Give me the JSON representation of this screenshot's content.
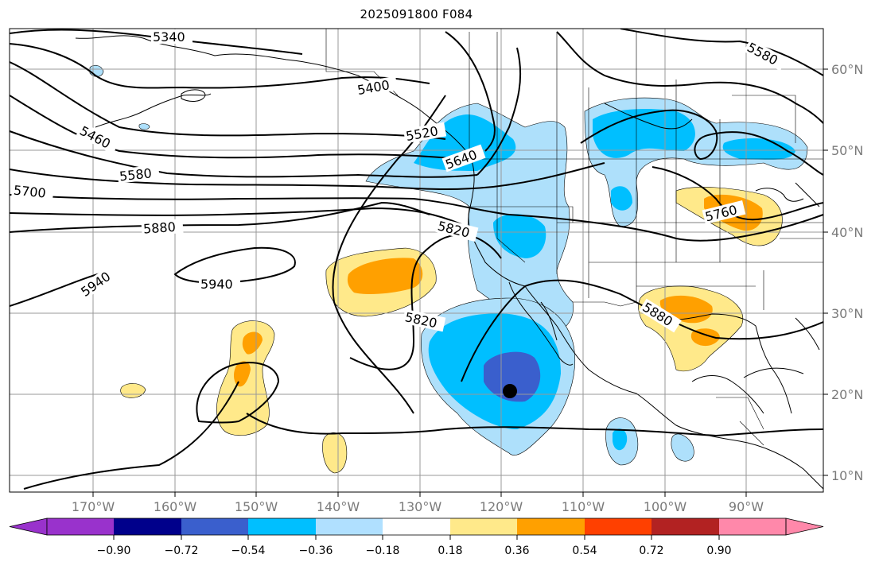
{
  "title": "2025091800 F084",
  "map": {
    "lon_labels": [
      {
        "text": "170°W",
        "lon": -170
      },
      {
        "text": "160°W",
        "lon": -160
      },
      {
        "text": "150°W",
        "lon": -150
      },
      {
        "text": "140°W",
        "lon": -140
      },
      {
        "text": "130°W",
        "lon": -130
      },
      {
        "text": "120°W",
        "lon": -120
      },
      {
        "text": "110°W",
        "lon": -110
      },
      {
        "text": "100°W",
        "lon": -100
      },
      {
        "text": "90°W",
        "lon": -90
      }
    ],
    "lat_labels": [
      {
        "text": "60°N",
        "lat": 60
      },
      {
        "text": "50°N",
        "lat": 50
      },
      {
        "text": "40°N",
        "lat": 40
      },
      {
        "text": "30°N",
        "lat": 30
      },
      {
        "text": "20°N",
        "lat": 20
      },
      {
        "text": "10°N",
        "lat": 10
      }
    ],
    "contour_labels": [
      "5340",
      "5460",
      "5580",
      "5700",
      "5880",
      "5940",
      "5940",
      "5820",
      "5820",
      "5880",
      "5760",
      "5580",
      "5400",
      "5520",
      "5640"
    ],
    "marker": "storm-center-dot"
  },
  "colorbar": {
    "ticks": [
      "−0.90",
      "−0.72",
      "−0.54",
      "−0.36",
      "−0.18",
      "0.18",
      "0.36",
      "0.54",
      "0.72",
      "0.90"
    ],
    "colors": [
      "#9932cc",
      "#00008b",
      "#3a5fcd",
      "#00bfff",
      "#b0e0ff",
      "#ffffff",
      "#ffe98a",
      "#ffa000",
      "#ff4000",
      "#b22222",
      "#ff88aa"
    ]
  }
}
